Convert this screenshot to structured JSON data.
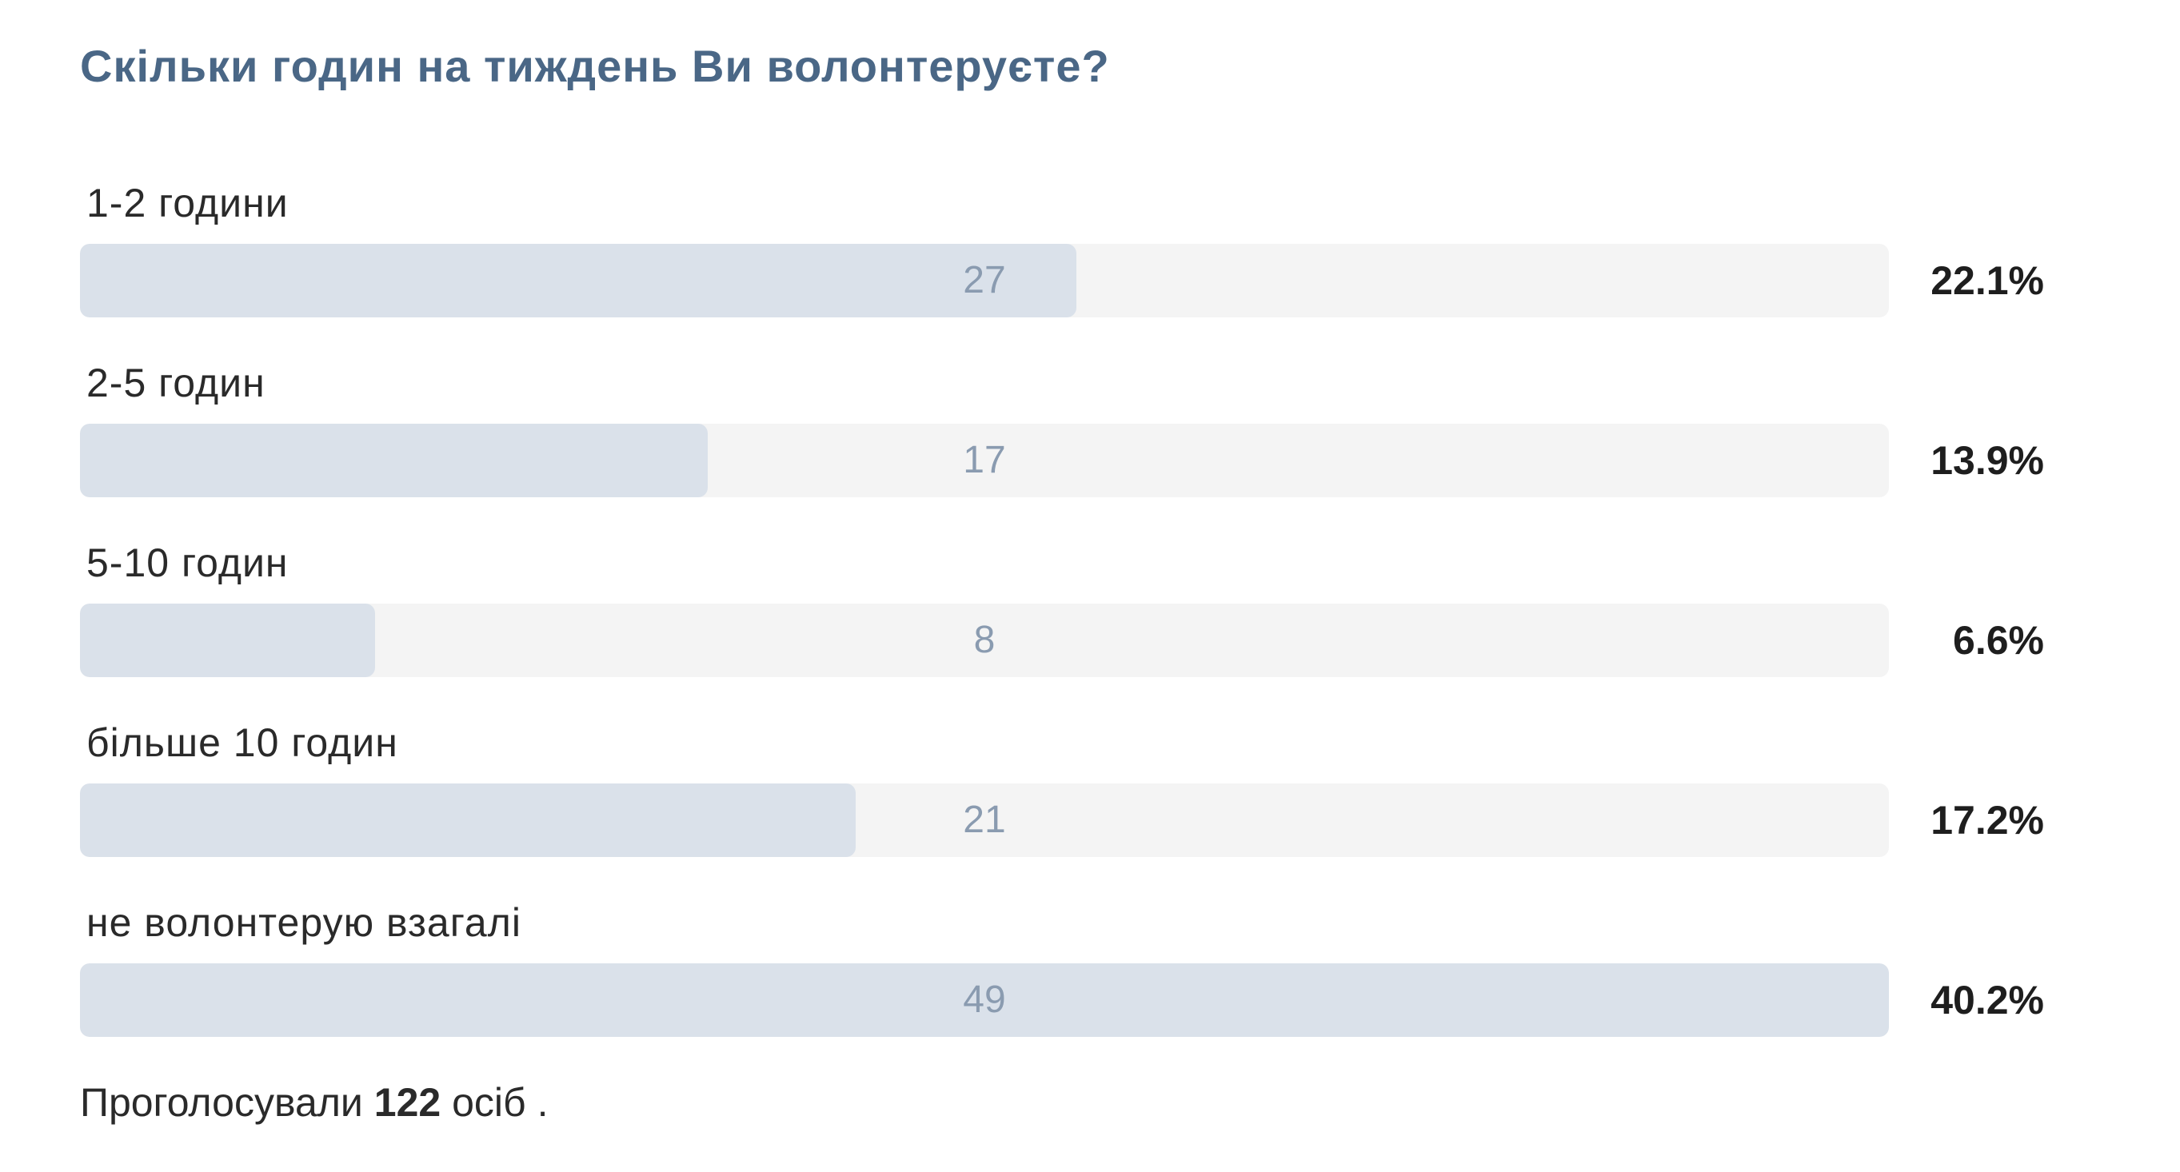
{
  "poll": {
    "title": "Скільки годин на тиждень Ви волонтеруєте?",
    "options": [
      {
        "label": "1-2 години",
        "count": "27",
        "percent": "22.1%",
        "fraction": 0.551
      },
      {
        "label": "2-5 годин",
        "count": "17",
        "percent": "13.9%",
        "fraction": 0.347
      },
      {
        "label": "5-10 годин",
        "count": "8",
        "percent": "6.6%",
        "fraction": 0.163
      },
      {
        "label": "більше 10 годин",
        "count": "21",
        "percent": "17.2%",
        "fraction": 0.429
      },
      {
        "label": "не волонтерую взагалі",
        "count": "49",
        "percent": "40.2%",
        "fraction": 1.0
      }
    ],
    "footer": {
      "prefix": "Проголосували",
      "total": "122",
      "suffix": "осіб",
      "end": "."
    }
  },
  "colors": {
    "title": "#4a6786",
    "bar_track": "#f4f4f4",
    "bar_fill": "#dae1ea",
    "bar_count": "#8a9bb0"
  }
}
